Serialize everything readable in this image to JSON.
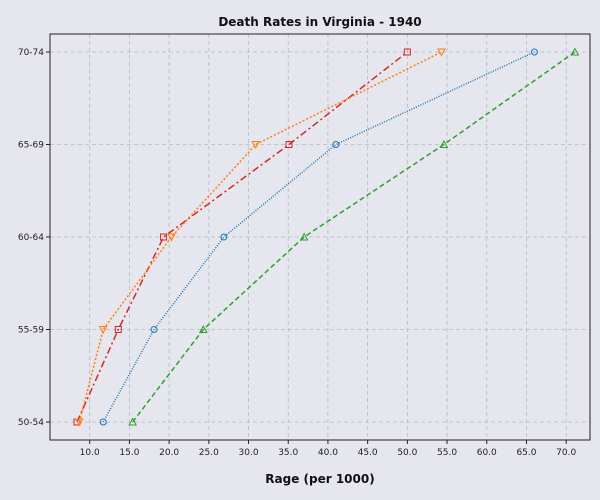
{
  "chart_data": {
    "type": "line",
    "title": "Death Rates in Virginia - 1940",
    "xlabel": "Rage (per 1000)",
    "ylabel": "",
    "xlim": [
      5,
      73
    ],
    "x_ticks": [
      "10.0",
      "15.0",
      "20.0",
      "25.0",
      "30.0",
      "35.0",
      "40.0",
      "45.0",
      "50.0",
      "55.0",
      "60.0",
      "65.0",
      "70.0"
    ],
    "categories": [
      "50-54",
      "55-59",
      "60-64",
      "65-69",
      "70-74"
    ],
    "grid": true,
    "series": [
      {
        "color": "#d62728",
        "dash": "7 3 2 3",
        "marker": "square",
        "values": [
          8.4,
          13.6,
          19.3,
          35.1,
          50.0
        ]
      },
      {
        "color": "#ff7f0e",
        "dash": "2 2",
        "marker": "triangle-down",
        "values": [
          8.7,
          11.7,
          20.3,
          30.9,
          54.3
        ]
      },
      {
        "color": "#1f77b4",
        "dash": "1 1.5",
        "marker": "circle",
        "values": [
          11.7,
          18.1,
          26.9,
          41.0,
          66.0
        ]
      },
      {
        "color": "#2ca02c",
        "dash": "5 3",
        "marker": "triangle-up",
        "values": [
          15.4,
          24.3,
          37.0,
          54.6,
          71.1
        ]
      }
    ]
  }
}
